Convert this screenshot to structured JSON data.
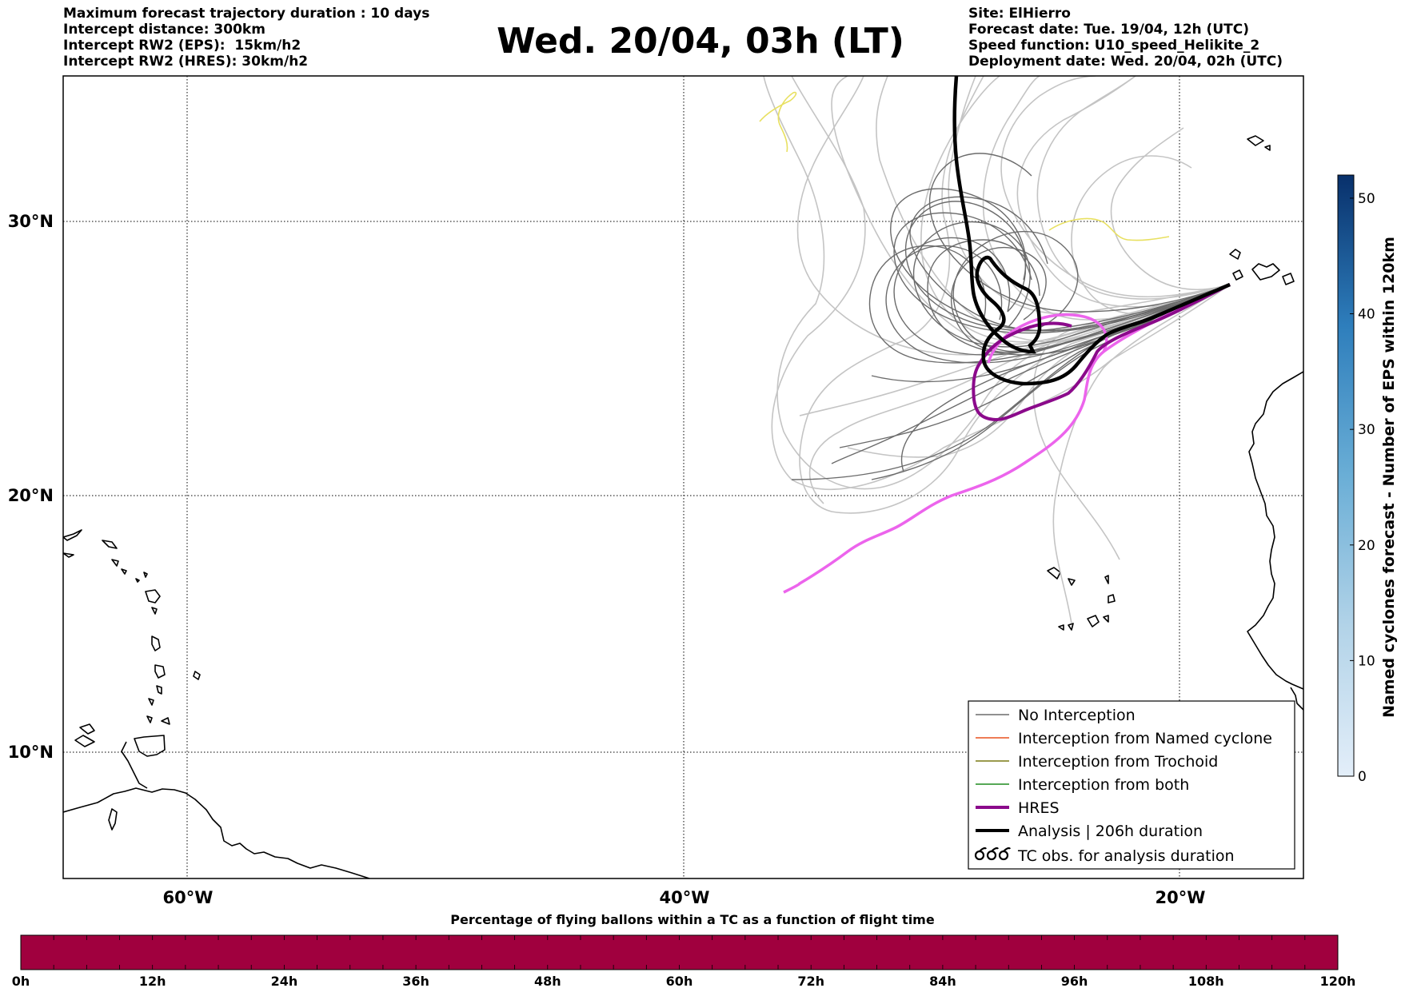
{
  "header": {
    "left_lines": [
      "Maximum forecast trajectory duration : 10 days",
      "Intercept distance: 300km",
      "Intercept RW2 (EPS):  15km/h2",
      "Intercept RW2 (HRES): 30km/h2"
    ],
    "title": "Wed. 20/04, 03h (LT)",
    "right_lines": [
      "Site: ElHierro",
      "Forecast date: Tue. 19/04, 12h (UTC)",
      "Speed function: U10_speed_Helikite_2",
      "Deployment date: Wed. 20/04, 02h (UTC)"
    ]
  },
  "map": {
    "lat_labels": [
      "30°N",
      "20°N",
      "10°N"
    ],
    "lon_labels": [
      "60°W",
      "40°W",
      "20°W"
    ],
    "extent": {
      "lon_min": -65,
      "lon_max": -15,
      "lat_min": 5.3,
      "lat_max": 34.5
    },
    "launch_site": {
      "name": "ElHierro",
      "lon": -17.9,
      "lat": 27.7
    },
    "colors": {
      "no_interception": "#6b6b6b",
      "no_interception_light": "#c4c4c4",
      "named_cyclone": "#e8501e",
      "trochoid": "#7a7a14",
      "both": "#1e8c1e",
      "hres": "#8b0a8b",
      "hres_extension": "#ec64ec",
      "analysis": "#000000",
      "yellow_track": "#e8e060"
    }
  },
  "legend": {
    "items": [
      {
        "label": "No Interception",
        "color": "#6b6b6b",
        "style": "thin"
      },
      {
        "label": "Interception from Named cyclone",
        "color": "#e8501e",
        "style": "thin"
      },
      {
        "label": "Interception from Trochoid",
        "color": "#7a7a14",
        "style": "thin"
      },
      {
        "label": "Interception from both",
        "color": "#1e8c1e",
        "style": "thin"
      },
      {
        "label": "HRES",
        "color": "#8b0a8b",
        "style": "thick"
      },
      {
        "label": "Analysis | 206h duration",
        "color": "#000000",
        "style": "thick"
      },
      {
        "label": "TC obs. for analysis duration",
        "color": "#000000",
        "style": "cyclone-symbol"
      }
    ]
  },
  "colorbar_right": {
    "label": "Named cyclones forecast - Number of EPS within 120km",
    "ticks": [
      "0",
      "10",
      "20",
      "30",
      "40",
      "50"
    ],
    "range": [
      0,
      52
    ]
  },
  "colorbar_bottom": {
    "label": "Percentage of flying ballons within a TC as a function of flight time",
    "ticks": [
      "0h",
      "12h",
      "24h",
      "36h",
      "48h",
      "60h",
      "72h",
      "84h",
      "96h",
      "108h",
      "120h"
    ],
    "fill_color": "#a0003e"
  }
}
